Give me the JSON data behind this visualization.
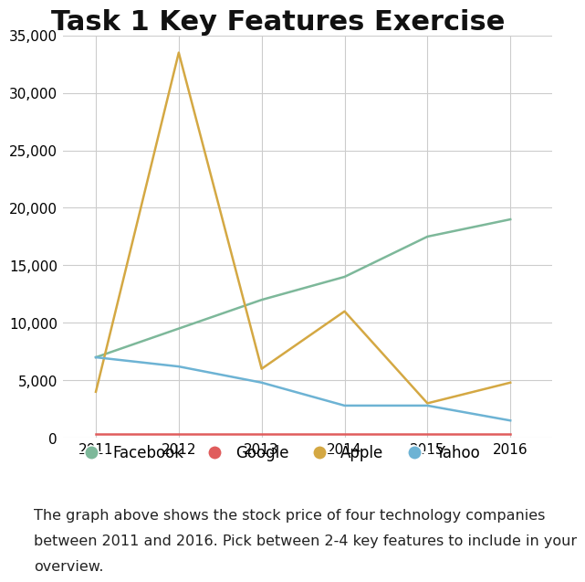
{
  "title": "Task 1 Key Features Exercise",
  "years": [
    2011,
    2012,
    2013,
    2014,
    2015,
    2016
  ],
  "facebook": [
    7000,
    9500,
    12000,
    14000,
    17500,
    19000
  ],
  "google": [
    300,
    300,
    300,
    300,
    300,
    300
  ],
  "apple": [
    4000,
    33500,
    6000,
    11000,
    3000,
    4800
  ],
  "yahoo": [
    7000,
    6200,
    4800,
    2800,
    2800,
    1500
  ],
  "colors": {
    "facebook": "#7db89a",
    "google": "#e05c5c",
    "apple": "#d4a843",
    "yahoo": "#6db3d4"
  },
  "ylim": [
    0,
    35000
  ],
  "yticks": [
    0,
    5000,
    10000,
    15000,
    20000,
    25000,
    30000,
    35000
  ],
  "background_color": "#ffffff",
  "grid_color": "#cccccc",
  "title_fontsize": 22,
  "tick_fontsize": 11,
  "legend_fontsize": 12,
  "caption_line1": "The graph above shows the stock price of four technology companies",
  "caption_line2": "between 2011 and 2016. Pick between 2-4 key features to include in your",
  "caption_line3": "overview.",
  "caption_fontsize": 11.5
}
